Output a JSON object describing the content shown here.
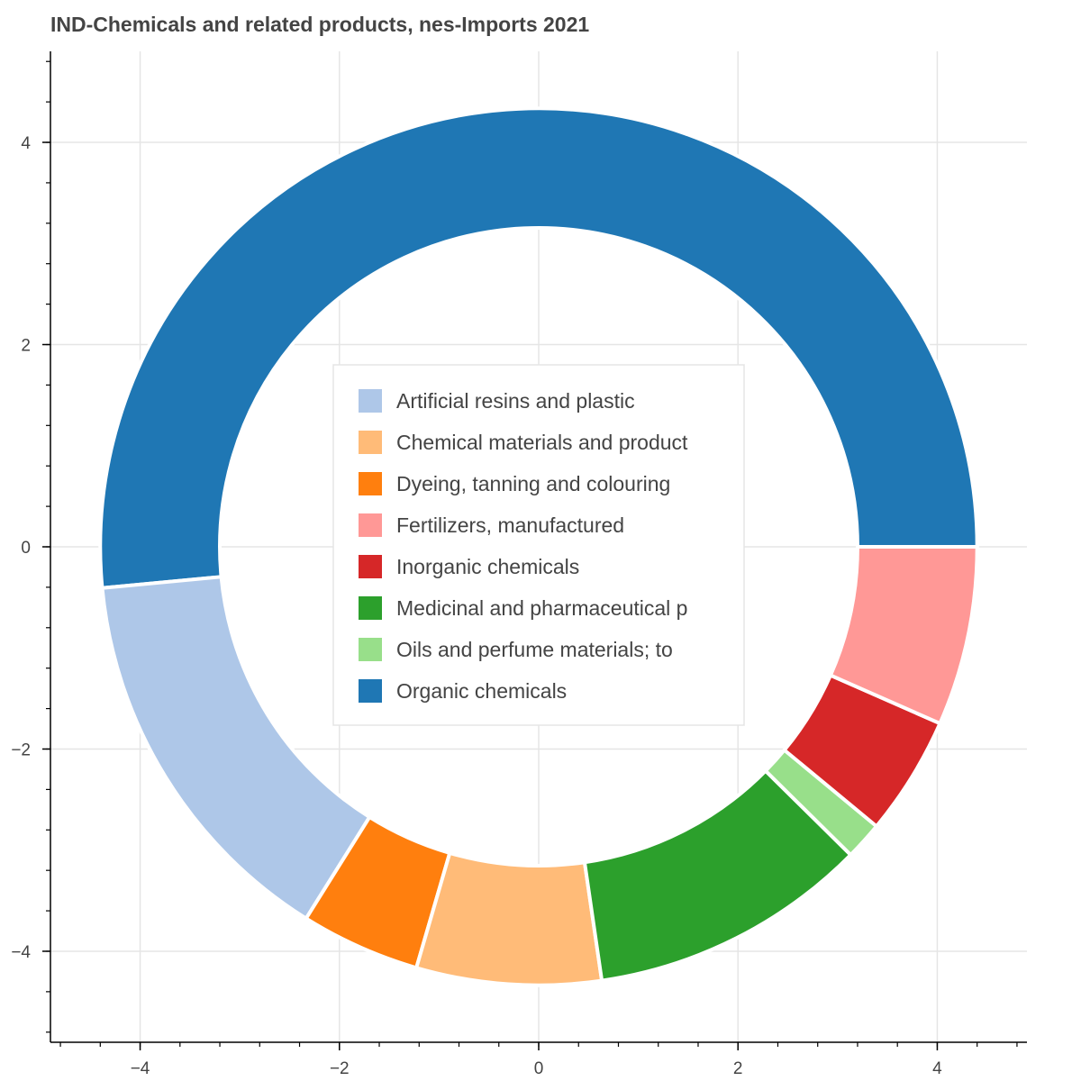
{
  "chart_data": {
    "type": "donut",
    "title": "IND-Chemicals and related products, nes-Imports 2021",
    "xlim": [
      -4.9,
      4.9
    ],
    "ylim": [
      -4.9,
      4.9
    ],
    "xticks": [
      -4,
      -2,
      0,
      2,
      4
    ],
    "yticks": [
      4,
      2,
      0,
      -2,
      -4
    ],
    "xtick_labels": [
      "−4",
      "−2",
      "0",
      "2",
      "4"
    ],
    "ytick_labels": [
      "4",
      "2",
      "0",
      "−2",
      "−4"
    ],
    "grid": true,
    "legend_position": "center",
    "outer_radius": 4.4,
    "inner_radius": 3.2,
    "slices": [
      {
        "label": "Organic chemicals",
        "value": 51.5,
        "color": "#1f77b4"
      },
      {
        "label": "Artificial resins and plastic",
        "value": 14.6,
        "color": "#aec7e8"
      },
      {
        "label": "Dyeing, tanning and colouring",
        "value": 4.4,
        "color": "#ff7f0e"
      },
      {
        "label": "Chemical materials and product",
        "value": 6.8,
        "color": "#ffbb78"
      },
      {
        "label": "Medicinal and pharmaceutical p",
        "value": 10.3,
        "color": "#2ca02c"
      },
      {
        "label": "Oils and perfume materials; to",
        "value": 1.4,
        "color": "#98df8a"
      },
      {
        "label": "Inorganic chemicals",
        "value": 4.4,
        "color": "#d62728"
      },
      {
        "label": "Fertilizers, manufactured",
        "value": 6.6,
        "color": "#ff9896"
      }
    ],
    "legend": [
      {
        "label": "Artificial resins and plastic",
        "color": "#aec7e8"
      },
      {
        "label": "Chemical materials and product",
        "color": "#ffbb78"
      },
      {
        "label": "Dyeing, tanning and colouring",
        "color": "#ff7f0e"
      },
      {
        "label": "Fertilizers, manufactured",
        "color": "#ff9896"
      },
      {
        "label": "Inorganic chemicals",
        "color": "#d62728"
      },
      {
        "label": "Medicinal and pharmaceutical p",
        "color": "#2ca02c"
      },
      {
        "label": "Oils and perfume materials; to",
        "color": "#98df8a"
      },
      {
        "label": "Organic chemicals",
        "color": "#1f77b4"
      }
    ]
  }
}
